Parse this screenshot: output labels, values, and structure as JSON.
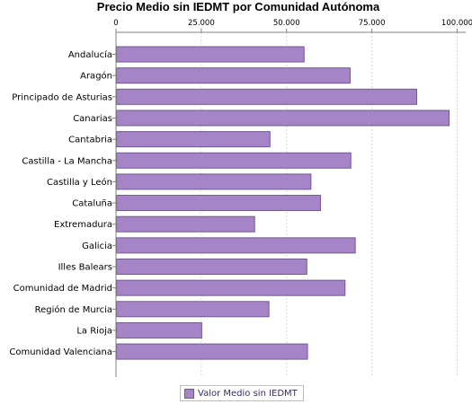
{
  "chart_data": {
    "type": "bar",
    "orientation": "horizontal",
    "title": "Precio Medio sin IEDMT por Comunidad Autónoma",
    "categories": [
      "Andalucía",
      "Aragón",
      "Principado de Asturias",
      "Canarias",
      "Cantabria",
      "Castilla - La Mancha",
      "Castilla y León",
      "Cataluña",
      "Extremadura",
      "Galicia",
      "Illes Balears",
      "Comunidad de Madrid",
      "Región de Murcia",
      "La Rioja",
      "Comunidad Valenciana"
    ],
    "series": [
      {
        "name": "Valor Medio sin IEDMT",
        "values": [
          55000,
          68500,
          88000,
          97500,
          45000,
          68700,
          57000,
          59800,
          40500,
          70000,
          55800,
          67000,
          44700,
          25000,
          56000
        ]
      }
    ],
    "xlim": [
      0,
      102500
    ],
    "xticks": [
      "0",
      "25.000",
      "50.000",
      "75.000",
      "100.000"
    ],
    "xtick_values": [
      0,
      25000,
      50000,
      75000,
      100000
    ],
    "x_axis_position": "top",
    "grid": true,
    "legend_position": "bottom",
    "colors": {
      "bar_fill": "#a585c8",
      "bar_stroke": "#6f5a8f",
      "grid": "#d8d8d8",
      "axis": "#808080"
    }
  }
}
